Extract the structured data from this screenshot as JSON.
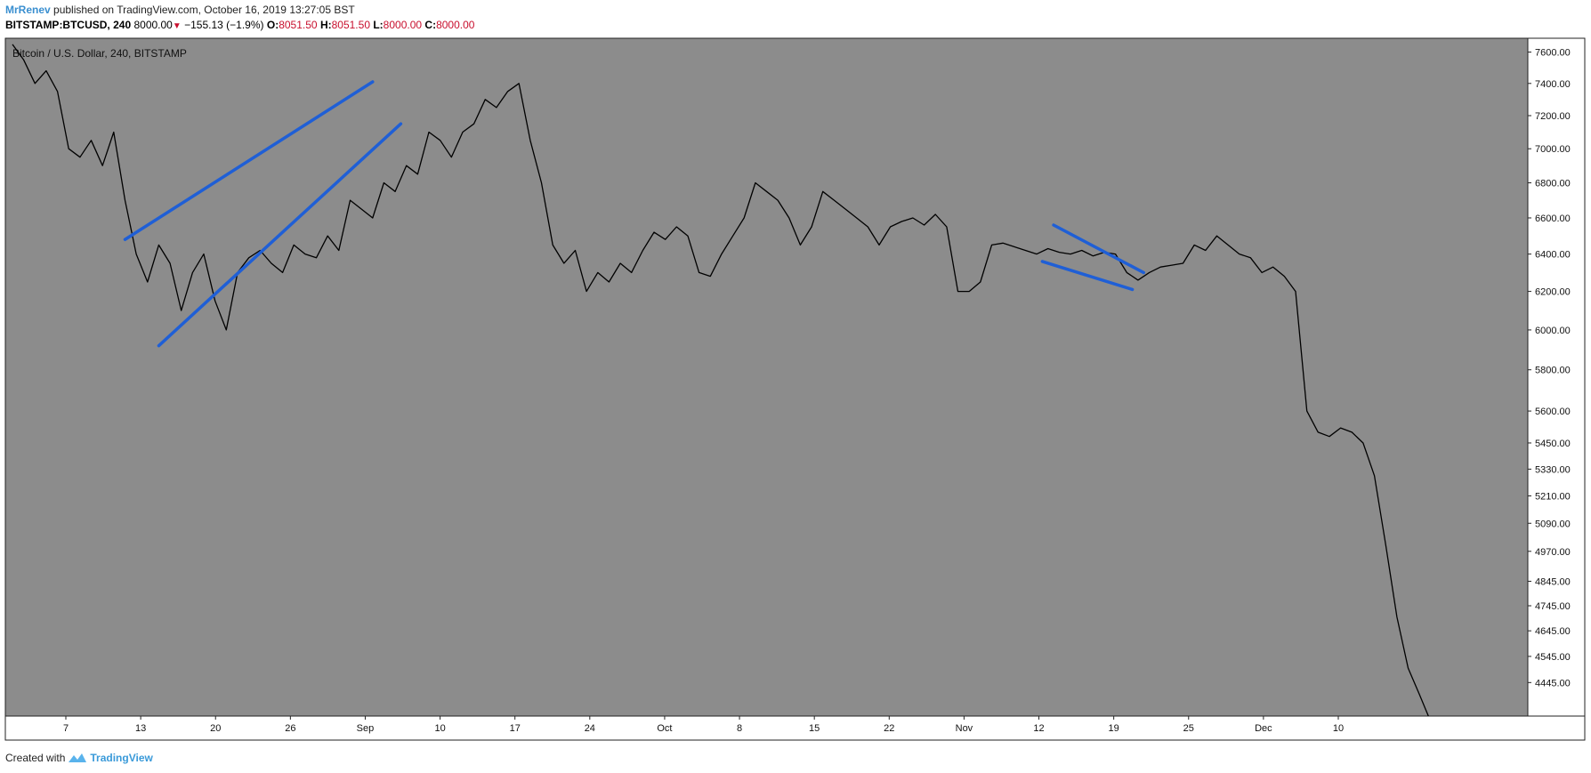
{
  "header": {
    "author": "MrRenev",
    "published_text": "published on TradingView.com, October 16, 2019 13:27:05 BST",
    "symbol": "BITSTAMP:BTCUSD, 240",
    "last": "8000.00",
    "change": "−155.13 (−1.9%)",
    "o_label": "O:",
    "o_value": "8051.50",
    "h_label": "H:",
    "h_value": "8051.50",
    "l_label": "L:",
    "l_value": "8000.00",
    "c_label": "C:",
    "c_value": "8000.00"
  },
  "footer": {
    "created_with": "Created with",
    "brand": "TradingView"
  },
  "colors": {
    "background": "#8c8c8c",
    "price_line": "#000000",
    "trendline": "#1f5fd6",
    "down": "#c8102e"
  },
  "chart_data": {
    "type": "line",
    "title": "Bitcoin / U.S. Dollar, 240, BITSTAMP",
    "xlabel": "",
    "ylabel": "",
    "x_ticks": [
      "7",
      "13",
      "20",
      "26",
      "Sep",
      "10",
      "17",
      "24",
      "Oct",
      "8",
      "15",
      "22",
      "Nov",
      "12",
      "19",
      "25",
      "Dec",
      "10"
    ],
    "y_ticks": [
      "7600.00",
      "7400.00",
      "7200.00",
      "7000.00",
      "6800.00",
      "6600.00",
      "6400.00",
      "6200.00",
      "6000.00",
      "5800.00",
      "5600.00",
      "5450.00",
      "5330.00",
      "5210.00",
      "5090.00",
      "4970.00",
      "4845.00",
      "4745.00",
      "4645.00",
      "4545.00",
      "4445.00"
    ],
    "x_range": [
      0,
      134
    ],
    "y_range": [
      4320,
      7690
    ],
    "y_scale": "log",
    "grid": false,
    "series": [
      {
        "x": [
          0,
          1,
          2,
          3,
          4,
          5,
          6,
          7,
          8,
          9,
          10,
          11,
          12,
          13,
          14,
          15,
          16,
          17,
          18,
          19,
          20,
          21,
          22,
          23,
          24,
          25,
          26,
          27,
          28,
          29,
          30,
          31,
          32,
          33,
          34,
          35,
          36,
          37,
          38,
          39,
          40,
          41,
          42,
          43,
          44,
          45,
          46,
          47,
          48,
          49,
          50,
          51,
          52,
          53,
          54,
          55,
          56,
          57,
          58,
          59,
          60,
          61,
          62,
          63,
          64,
          65,
          66,
          67,
          68,
          69,
          70,
          71,
          72,
          73,
          74,
          75,
          76,
          77,
          78,
          79,
          80,
          81,
          82,
          83,
          84,
          85,
          86,
          87,
          88,
          89,
          90,
          91,
          92,
          93,
          94,
          95,
          96,
          97,
          98,
          99,
          100,
          101,
          102,
          103,
          104,
          105,
          106,
          107,
          108,
          109,
          110,
          111,
          112,
          113,
          114,
          115,
          116,
          117,
          118,
          119,
          120,
          121,
          122,
          123,
          124,
          125,
          126
        ],
        "y": [
          7650,
          7550,
          7400,
          7480,
          7350,
          7000,
          6950,
          7050,
          6900,
          7100,
          6700,
          6400,
          6250,
          6450,
          6350,
          6100,
          6300,
          6400,
          6150,
          6000,
          6300,
          6380,
          6420,
          6350,
          6300,
          6450,
          6400,
          6380,
          6500,
          6420,
          6700,
          6650,
          6600,
          6800,
          6750,
          6900,
          6850,
          7100,
          7050,
          6950,
          7100,
          7150,
          7300,
          7250,
          7350,
          7400,
          7050,
          6800,
          6450,
          6350,
          6420,
          6200,
          6300,
          6250,
          6350,
          6300,
          6420,
          6520,
          6480,
          6550,
          6500,
          6300,
          6280,
          6400,
          6500,
          6600,
          6800,
          6750,
          6700,
          6600,
          6450,
          6550,
          6750,
          6700,
          6650,
          6600,
          6550,
          6450,
          6550,
          6580,
          6600,
          6560,
          6620,
          6550,
          6200,
          6200,
          6250,
          6450,
          6460,
          6440,
          6420,
          6400,
          6430,
          6410,
          6400,
          6420,
          6390,
          6410,
          6400,
          6300,
          6260,
          6300,
          6330,
          6340,
          6350,
          6450,
          6420,
          6500,
          6450,
          6400,
          6380,
          6300,
          6330,
          6280,
          6200,
          5600,
          5500,
          5480,
          5520,
          5500,
          5450,
          5300,
          5000,
          4700,
          4500,
          4400,
          4300
        ]
      }
    ],
    "annotations": [
      {
        "type": "trendline",
        "from": [
          10,
          6480
        ],
        "to": [
          32,
          7410
        ]
      },
      {
        "type": "trendline",
        "from": [
          13,
          5920
        ],
        "to": [
          34.5,
          7150
        ]
      },
      {
        "type": "trendline",
        "from": [
          92.5,
          6560
        ],
        "to": [
          100.5,
          6300
        ]
      },
      {
        "type": "trendline",
        "from": [
          91.5,
          6360
        ],
        "to": [
          99.5,
          6210
        ]
      }
    ]
  }
}
